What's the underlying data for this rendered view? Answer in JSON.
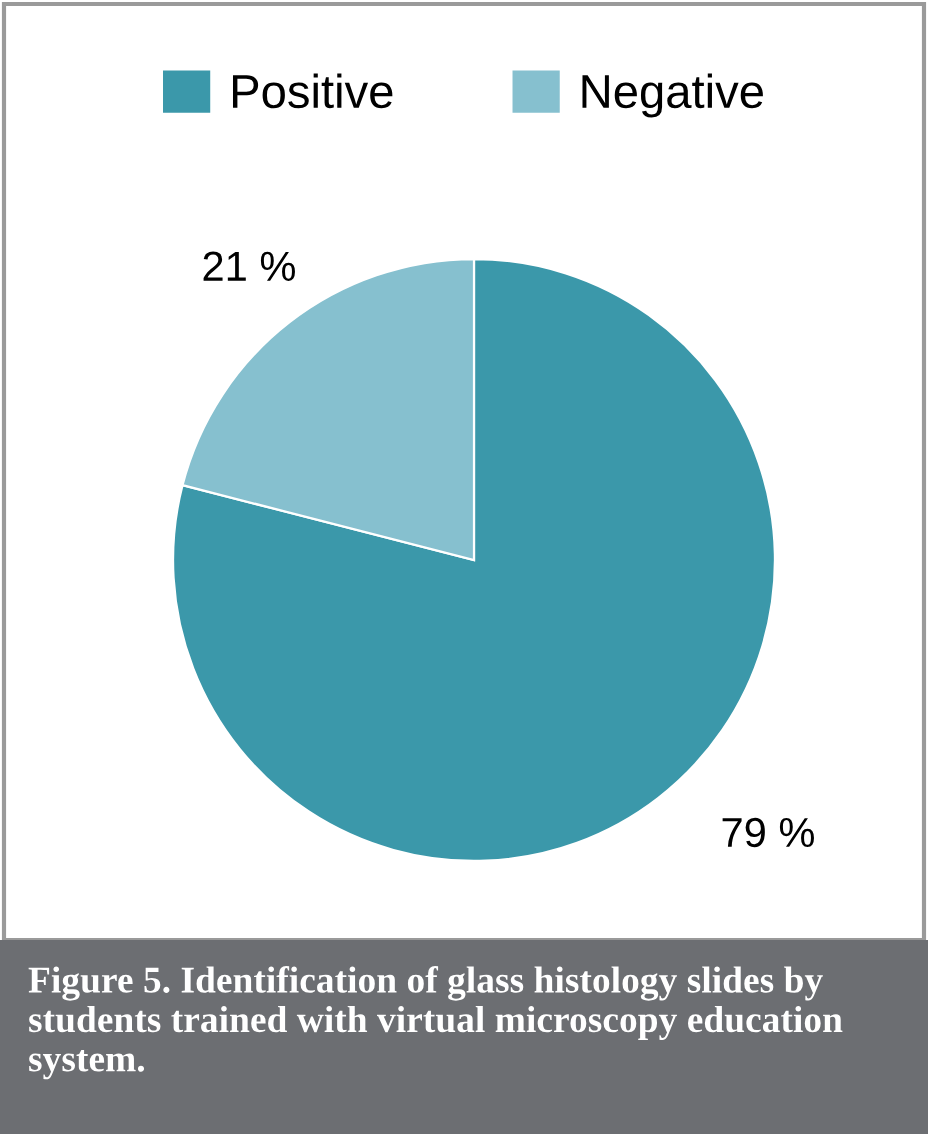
{
  "chart_data": {
    "type": "pie",
    "categories": [
      "Positive",
      "Negative"
    ],
    "values": [
      79,
      21
    ],
    "colors": [
      "#3b98aa",
      "#86c0cf"
    ],
    "value_labels": [
      "79 %",
      "21 %"
    ],
    "legend": "top",
    "annotations": [
      "Figure 5. Identification of glass histology slides by students trained with virtual microscopy education system."
    ]
  }
}
